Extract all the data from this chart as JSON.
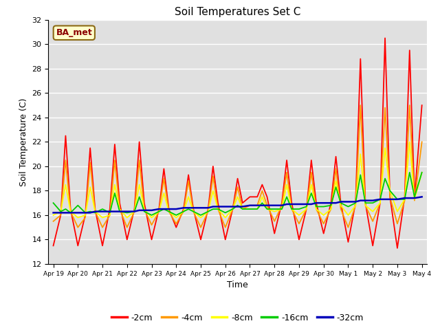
{
  "title": "Soil Temperatures Set C",
  "xlabel": "Time",
  "ylabel": "Soil Temperature (C)",
  "ylim": [
    12,
    32
  ],
  "yticks": [
    12,
    14,
    16,
    18,
    20,
    22,
    24,
    26,
    28,
    30,
    32
  ],
  "label_annotation": "BA_met",
  "bg_color": "#e0e0e0",
  "fig_color": "#ffffff",
  "colors": {
    "-2cm": "#ff0000",
    "-4cm": "#ff9900",
    "-8cm": "#ffff00",
    "-16cm": "#00cc00",
    "-32cm": "#0000bb"
  },
  "x_tick_labels": [
    "Apr 19",
    "Apr 20",
    "Apr 21",
    "Apr 22",
    "Apr 23",
    "Apr 24",
    "Apr 25",
    "Apr 26",
    "Apr 27",
    "Apr 28",
    "Apr 29",
    "Apr 30",
    "May 1",
    "May 2",
    "May 3",
    "May 4"
  ],
  "series": {
    "-2cm": {
      "x": [
        0,
        0.3,
        0.5,
        0.7,
        1,
        1.3,
        1.5,
        1.7,
        2,
        2.3,
        2.5,
        2.7,
        3,
        3.3,
        3.5,
        3.7,
        4,
        4.3,
        4.5,
        4.7,
        5,
        5.3,
        5.5,
        5.7,
        6,
        6.3,
        6.5,
        6.7,
        7,
        7.3,
        7.5,
        7.7,
        8,
        8.3,
        8.5,
        8.7,
        9,
        9.3,
        9.5,
        9.7,
        10,
        10.3,
        10.5,
        10.7,
        11,
        11.3,
        11.5,
        11.7,
        12,
        12.3,
        12.5,
        12.7,
        13,
        13.3,
        13.5,
        13.7,
        14,
        14.3,
        14.5,
        14.7,
        15
      ],
      "y": [
        13.5,
        16.0,
        22.5,
        16.5,
        13.5,
        16.0,
        21.5,
        16.5,
        13.5,
        16.5,
        21.8,
        17.0,
        14.0,
        16.5,
        22.0,
        17.0,
        14.0,
        16.5,
        19.8,
        16.5,
        15.0,
        16.5,
        19.3,
        16.5,
        14.0,
        16.5,
        20.0,
        17.0,
        14.0,
        16.5,
        19.0,
        17.0,
        17.5,
        17.5,
        18.5,
        17.5,
        14.5,
        17.0,
        20.5,
        17.0,
        14.0,
        16.5,
        20.5,
        17.0,
        14.5,
        17.0,
        20.8,
        17.0,
        13.8,
        17.0,
        28.8,
        17.0,
        13.5,
        17.0,
        30.5,
        17.5,
        13.3,
        17.5,
        29.5,
        17.5,
        25.0
      ]
    },
    "-4cm": {
      "x": [
        0,
        0.3,
        0.5,
        0.7,
        1,
        1.3,
        1.5,
        1.7,
        2,
        2.3,
        2.5,
        2.7,
        3,
        3.3,
        3.5,
        3.7,
        4,
        4.3,
        4.5,
        4.7,
        5,
        5.3,
        5.5,
        5.7,
        6,
        6.3,
        6.5,
        6.7,
        7,
        7.3,
        7.5,
        7.7,
        8,
        8.3,
        8.5,
        8.7,
        9,
        9.3,
        9.5,
        9.7,
        10,
        10.3,
        10.5,
        10.7,
        11,
        11.3,
        11.5,
        11.7,
        12,
        12.3,
        12.5,
        12.7,
        13,
        13.3,
        13.5,
        13.7,
        14,
        14.3,
        14.5,
        14.7,
        15
      ],
      "y": [
        15.5,
        16.0,
        20.5,
        16.3,
        15.0,
        15.8,
        20.3,
        16.3,
        15.0,
        16.0,
        20.5,
        16.5,
        15.0,
        16.3,
        20.5,
        16.5,
        15.2,
        16.3,
        19.0,
        16.3,
        15.3,
        16.3,
        18.8,
        16.3,
        15.0,
        16.3,
        19.2,
        16.5,
        15.0,
        16.5,
        18.3,
        16.5,
        16.8,
        16.8,
        18.0,
        16.8,
        15.5,
        16.8,
        19.5,
        16.5,
        15.3,
        16.5,
        19.5,
        16.5,
        15.3,
        16.5,
        19.8,
        16.5,
        15.0,
        16.8,
        25.0,
        16.8,
        15.5,
        17.0,
        24.8,
        17.5,
        15.3,
        17.2,
        25.0,
        17.2,
        22.0
      ]
    },
    "-8cm": {
      "x": [
        0,
        0.3,
        0.5,
        0.7,
        1,
        1.3,
        1.5,
        1.7,
        2,
        2.3,
        2.5,
        2.7,
        3,
        3.3,
        3.5,
        3.7,
        4,
        4.3,
        4.5,
        4.7,
        5,
        5.3,
        5.5,
        5.7,
        6,
        6.3,
        6.5,
        6.7,
        7,
        7.3,
        7.5,
        7.7,
        8,
        8.3,
        8.5,
        8.7,
        9,
        9.3,
        9.5,
        9.7,
        10,
        10.3,
        10.5,
        10.7,
        11,
        11.3,
        11.5,
        11.7,
        12,
        12.3,
        12.5,
        12.7,
        13,
        13.3,
        13.5,
        13.7,
        14,
        14.3,
        14.5,
        14.7,
        15
      ],
      "y": [
        16.0,
        16.3,
        18.5,
        16.3,
        15.8,
        16.0,
        18.3,
        16.3,
        15.8,
        16.0,
        18.5,
        16.5,
        15.8,
        16.3,
        18.5,
        16.5,
        15.8,
        16.3,
        17.8,
        16.3,
        15.8,
        16.3,
        17.5,
        16.3,
        15.8,
        16.3,
        18.0,
        16.5,
        15.8,
        16.5,
        17.5,
        16.5,
        16.5,
        16.5,
        17.5,
        16.5,
        16.3,
        16.5,
        18.5,
        16.5,
        16.0,
        16.5,
        18.5,
        16.5,
        16.0,
        16.5,
        18.8,
        16.8,
        16.0,
        16.8,
        21.0,
        16.8,
        16.3,
        17.0,
        21.5,
        18.0,
        16.3,
        17.3,
        22.0,
        17.3,
        19.5
      ]
    },
    "-16cm": {
      "x": [
        0,
        0.3,
        0.5,
        0.7,
        1,
        1.3,
        1.5,
        1.7,
        2,
        2.3,
        2.5,
        2.7,
        3,
        3.3,
        3.5,
        3.7,
        4,
        4.3,
        4.5,
        4.7,
        5,
        5.3,
        5.5,
        5.7,
        6,
        6.3,
        6.5,
        6.7,
        7,
        7.3,
        7.5,
        7.7,
        8,
        8.3,
        8.5,
        8.7,
        9,
        9.3,
        9.5,
        9.7,
        10,
        10.3,
        10.5,
        10.7,
        11,
        11.3,
        11.5,
        11.7,
        12,
        12.3,
        12.5,
        12.7,
        13,
        13.3,
        13.5,
        13.7,
        14,
        14.3,
        14.5,
        14.7,
        15
      ],
      "y": [
        17.0,
        16.3,
        16.5,
        16.2,
        16.8,
        16.2,
        16.3,
        16.2,
        16.5,
        16.2,
        17.8,
        16.3,
        16.2,
        16.3,
        17.5,
        16.3,
        16.0,
        16.3,
        16.5,
        16.3,
        16.0,
        16.3,
        16.5,
        16.3,
        16.0,
        16.3,
        16.5,
        16.5,
        16.2,
        16.5,
        16.8,
        16.5,
        16.5,
        16.5,
        17.0,
        16.5,
        16.5,
        16.5,
        17.5,
        16.5,
        16.5,
        16.7,
        17.8,
        16.7,
        16.7,
        16.8,
        18.3,
        17.0,
        16.7,
        17.0,
        19.3,
        17.0,
        17.0,
        17.3,
        19.0,
        18.0,
        17.3,
        17.3,
        19.5,
        17.5,
        19.5
      ]
    },
    "-32cm": {
      "x": [
        0,
        0.3,
        0.5,
        0.7,
        1,
        1.3,
        1.5,
        1.7,
        2,
        2.3,
        2.5,
        2.7,
        3,
        3.3,
        3.5,
        3.7,
        4,
        4.3,
        4.5,
        4.7,
        5,
        5.3,
        5.5,
        5.7,
        6,
        6.3,
        6.5,
        6.7,
        7,
        7.3,
        7.5,
        7.7,
        8,
        8.3,
        8.5,
        8.7,
        9,
        9.3,
        9.5,
        9.7,
        10,
        10.3,
        10.5,
        10.7,
        11,
        11.3,
        11.5,
        11.7,
        12,
        12.3,
        12.5,
        12.7,
        13,
        13.3,
        13.5,
        13.7,
        14,
        14.3,
        14.5,
        14.7,
        15
      ],
      "y": [
        16.2,
        16.2,
        16.2,
        16.2,
        16.2,
        16.2,
        16.2,
        16.3,
        16.3,
        16.3,
        16.3,
        16.3,
        16.3,
        16.3,
        16.4,
        16.4,
        16.4,
        16.5,
        16.5,
        16.5,
        16.5,
        16.6,
        16.6,
        16.6,
        16.6,
        16.6,
        16.7,
        16.7,
        16.7,
        16.7,
        16.7,
        16.7,
        16.8,
        16.8,
        16.8,
        16.8,
        16.8,
        16.8,
        16.9,
        16.9,
        16.9,
        16.9,
        16.9,
        17.0,
        17.0,
        17.0,
        17.0,
        17.1,
        17.1,
        17.1,
        17.2,
        17.2,
        17.2,
        17.3,
        17.3,
        17.3,
        17.3,
        17.4,
        17.4,
        17.4,
        17.5
      ]
    }
  }
}
